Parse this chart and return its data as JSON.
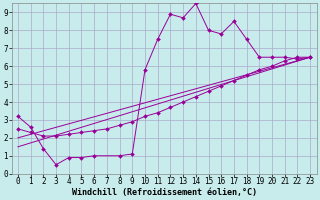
{
  "background_color": "#c8ecec",
  "grid_color": "#aaaacc",
  "line_color": "#990099",
  "marker_color": "#990099",
  "xlabel": "Windchill (Refroidissement éolien,°C)",
  "xlim": [
    -0.5,
    23.5
  ],
  "ylim": [
    0,
    9.5
  ],
  "xticks": [
    0,
    1,
    2,
    3,
    4,
    5,
    6,
    7,
    8,
    9,
    10,
    11,
    12,
    13,
    14,
    15,
    16,
    17,
    18,
    19,
    20,
    21,
    22,
    23
  ],
  "yticks": [
    0,
    1,
    2,
    3,
    4,
    5,
    6,
    7,
    8,
    9
  ],
  "series1_x": [
    0,
    1,
    2,
    3,
    4,
    5,
    6,
    8,
    9,
    10,
    11,
    12,
    13,
    14,
    15,
    16,
    17,
    18,
    19,
    20,
    21,
    22,
    23
  ],
  "series1_y": [
    3.2,
    2.6,
    1.4,
    0.5,
    0.9,
    0.9,
    1.0,
    1.0,
    1.1,
    5.8,
    7.5,
    8.9,
    8.7,
    9.5,
    8.0,
    7.8,
    8.5,
    7.5,
    6.5,
    6.5,
    6.5,
    6.4,
    6.5
  ],
  "series2_x": [
    0,
    1,
    2,
    3,
    4,
    5,
    6,
    7,
    8,
    9,
    10,
    11,
    12,
    13,
    14,
    15,
    16,
    17,
    18,
    19,
    20,
    21,
    22,
    23
  ],
  "series2_y": [
    2.5,
    2.3,
    2.1,
    2.1,
    2.2,
    2.3,
    2.4,
    2.5,
    2.7,
    2.9,
    3.2,
    3.4,
    3.7,
    4.0,
    4.3,
    4.6,
    4.9,
    5.2,
    5.5,
    5.8,
    6.0,
    6.3,
    6.5,
    6.5
  ],
  "series3_x": [
    0,
    23
  ],
  "series3_y": [
    2.0,
    6.5
  ],
  "series4_x": [
    0,
    23
  ],
  "series4_y": [
    1.5,
    6.5
  ],
  "tick_fontsize": 5.5,
  "label_fontsize": 6.0
}
